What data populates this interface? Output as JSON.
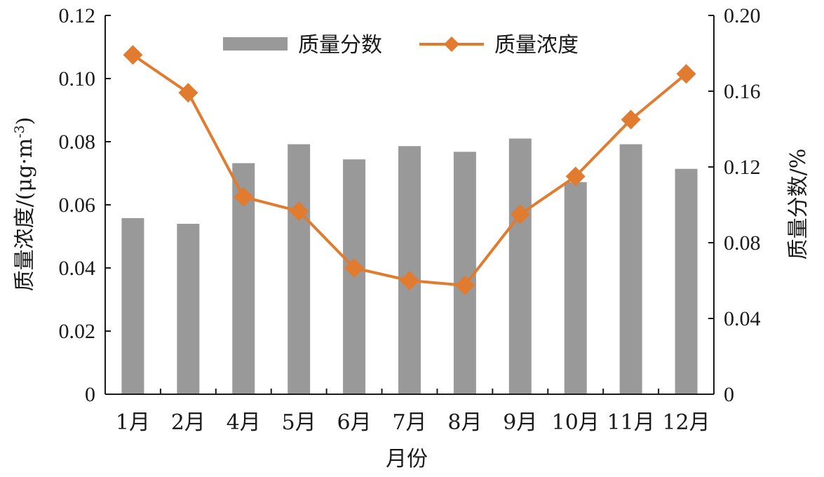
{
  "chart_data": {
    "type": "bar",
    "categories": [
      "1月",
      "2月",
      "4月",
      "5月",
      "6月",
      "7月",
      "8月",
      "9月",
      "10月",
      "11月",
      "12月"
    ],
    "xlabel": "月份",
    "ylabel_left": "质量浓度/(μg·m",
    "ylabel_left_sup": "-3",
    "ylabel_left_close": ")",
    "ylabel_right": "质量分数/%",
    "y_left": {
      "min": 0,
      "max": 0.12,
      "ticks": [
        0,
        0.02,
        0.04,
        0.06,
        0.08,
        0.1,
        0.12
      ],
      "tick_labels": [
        "0",
        "0.02",
        "0.04",
        "0.06",
        "0.08",
        "0.10",
        "0.12"
      ]
    },
    "y_right": {
      "min": 0,
      "max": 0.2,
      "ticks": [
        0,
        0.04,
        0.08,
        0.12,
        0.16,
        0.2
      ],
      "tick_labels": [
        "0",
        "0.04",
        "0.08",
        "0.12",
        "0.16",
        "0.20"
      ]
    },
    "legend_position": "top-center",
    "grid": false,
    "series": [
      {
        "name": "质量分数",
        "type": "bar",
        "axis": "right",
        "color": "#999999",
        "values": [
          0.093,
          0.09,
          0.122,
          0.132,
          0.124,
          0.131,
          0.128,
          0.135,
          0.112,
          0.132,
          0.119
        ]
      },
      {
        "name": "质量浓度",
        "type": "line",
        "axis": "left",
        "color": "#E07B30",
        "marker": "diamond",
        "values": [
          0.1075,
          0.0955,
          0.0625,
          0.058,
          0.04,
          0.036,
          0.0345,
          0.057,
          0.069,
          0.087,
          0.1015
        ]
      }
    ]
  }
}
